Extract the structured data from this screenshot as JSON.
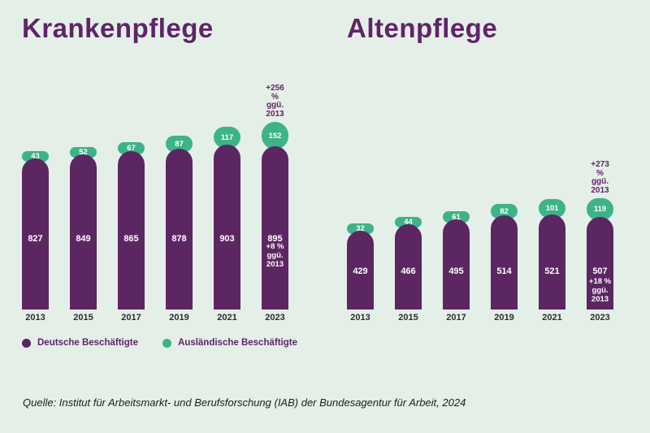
{
  "colors": {
    "background": "#e4efe8",
    "bar_purple": "#5c2662",
    "bubble_green": "#3db388",
    "heading_purple": "#5f2468",
    "value_text": "#ffffff",
    "year_text": "#2d2d2d",
    "source_text": "#1c1c1c"
  },
  "chart_data": [
    {
      "type": "bar",
      "stacked": true,
      "title": "Krankenpflege",
      "categories": [
        "2013",
        "2015",
        "2017",
        "2019",
        "2021",
        "2023"
      ],
      "series": [
        {
          "name": "Deutsche Beschäftigte",
          "color": "#5c2662",
          "values": [
            827,
            849,
            865,
            878,
            903,
            895
          ]
        },
        {
          "name": "Ausländische Beschäftigte",
          "color": "#3db388",
          "values": [
            43,
            52,
            67,
            87,
            117,
            152
          ]
        }
      ],
      "annotations": {
        "top": {
          "category": "2023",
          "lines": [
            "+256 %",
            "ggü.",
            "2013"
          ]
        },
        "inside": {
          "category": "2023",
          "lines": [
            "+8 %",
            "ggü.",
            "2013"
          ]
        }
      },
      "legend_position": "bottom",
      "grid": false
    },
    {
      "type": "bar",
      "stacked": true,
      "title": "Altenpflege",
      "categories": [
        "2013",
        "2015",
        "2017",
        "2019",
        "2021",
        "2023"
      ],
      "series": [
        {
          "name": "Deutsche Beschäftigte",
          "color": "#5c2662",
          "values": [
            429,
            466,
            495,
            514,
            521,
            507
          ]
        },
        {
          "name": "Ausländische Beschäftigte",
          "color": "#3db388",
          "values": [
            32,
            44,
            61,
            82,
            101,
            119
          ]
        }
      ],
      "annotations": {
        "top": {
          "category": "2023",
          "lines": [
            "+273 %",
            "ggü.",
            "2013"
          ]
        },
        "inside": {
          "category": "2023",
          "lines": [
            "+18 %",
            "ggü.",
            "2013"
          ]
        }
      },
      "legend_position": "bottom",
      "grid": false
    }
  ],
  "legend": {
    "items": [
      {
        "label": "Deutsche Beschäftigte",
        "color": "#5c2662"
      },
      {
        "label": "Ausländische Beschäftigte",
        "color": "#3db388"
      }
    ]
  },
  "source": "Quelle: Institut für Arbeitsmarkt- und Berufsforschung (IAB) der Bundesagentur für Arbeit, 2024"
}
